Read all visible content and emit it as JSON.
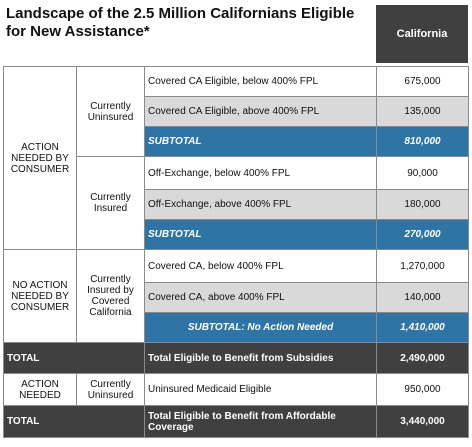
{
  "title": "Landscape of the 2.5 Million Californians Eligible for New Assistance*",
  "column_header": "California",
  "sections": [
    {
      "label": "ACTION NEEDED BY CONSUMER",
      "groups": [
        {
          "label": "Currently Uninsured",
          "rows": [
            [
              "Covered CA Eligible, below 400% FPL",
              "675,000"
            ],
            [
              "Covered CA Eligible, above 400% FPL",
              "135,000"
            ]
          ],
          "subtotal": [
            "SUBTOTAL",
            "810,000"
          ]
        },
        {
          "label": "Currently Insured",
          "rows": [
            [
              "Off-Exchange, below 400% FPL",
              "90,000"
            ],
            [
              "Off-Exchange, above 400% FPL",
              "180,000"
            ]
          ],
          "subtotal": [
            "SUBTOTAL",
            "270,000"
          ]
        }
      ]
    },
    {
      "label": "NO ACTION NEEDED BY CONSUMER",
      "groups": [
        {
          "label": "Currently Insured by Covered California",
          "rows": [
            [
              "Covered CA, below 400% FPL",
              "1,270,000"
            ],
            [
              "Covered CA, above 400% FPL",
              "140,000"
            ]
          ],
          "subtotal": [
            "SUBTOTAL: No Action Needed",
            "1,410,000"
          ]
        }
      ]
    }
  ],
  "total_subsidies": [
    "TOTAL",
    "Total Eligible to Benefit from Subsidies",
    "2,490,000"
  ],
  "medicaid": [
    "ACTION NEEDED",
    "Currently Uninsured",
    "Uninsured Medicaid Eligible",
    "950,000"
  ],
  "total_affordable": [
    "TOTAL",
    "Total Eligible to Benefit from Affordable Coverage",
    "3,440,000"
  ]
}
